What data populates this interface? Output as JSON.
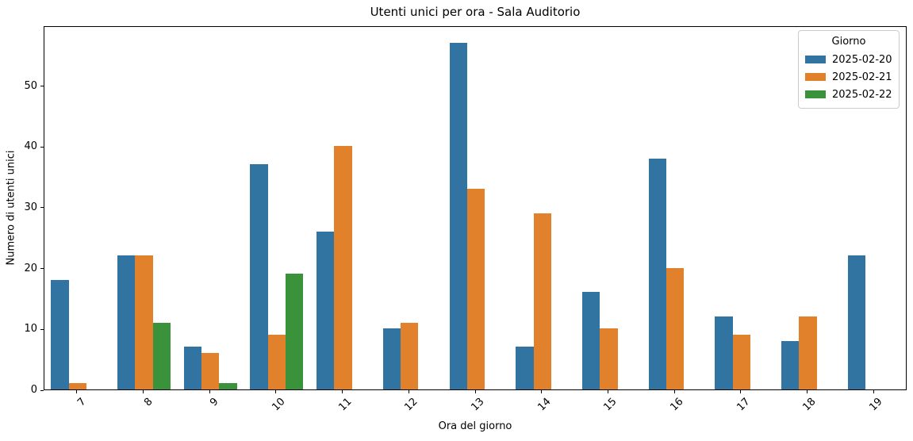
{
  "window": {
    "background_color": "#ffffff"
  },
  "chart_data": {
    "type": "bar",
    "title": "Utenti unici per ora - Sala Auditorio",
    "xlabel": "Ora del giorno",
    "ylabel": "Numero di utenti unici",
    "grid": false,
    "categories": [
      "7",
      "8",
      "9",
      "10",
      "11",
      "12",
      "13",
      "14",
      "15",
      "16",
      "17",
      "18",
      "19"
    ],
    "yticks": [
      0,
      10,
      20,
      30,
      40,
      50
    ],
    "ylim": [
      0,
      59.85
    ],
    "bar_group_width_fraction": 0.8,
    "legend": {
      "title": "Giorno",
      "position": "upper-right"
    },
    "series": [
      {
        "name": "2025-02-20",
        "color": "#3274A1",
        "values": [
          18,
          22,
          7,
          37,
          26,
          10,
          57,
          7,
          16,
          38,
          12,
          8,
          22
        ]
      },
      {
        "name": "2025-02-21",
        "color": "#E1812C",
        "values": [
          1,
          22,
          6,
          9,
          40,
          11,
          33,
          29,
          10,
          20,
          9,
          12,
          null
        ]
      },
      {
        "name": "2025-02-22",
        "color": "#3A923A",
        "values": [
          null,
          11,
          1,
          19,
          null,
          null,
          null,
          null,
          null,
          null,
          null,
          null,
          null
        ]
      }
    ],
    "axis_color": "#000000",
    "text_color": "#000000"
  }
}
